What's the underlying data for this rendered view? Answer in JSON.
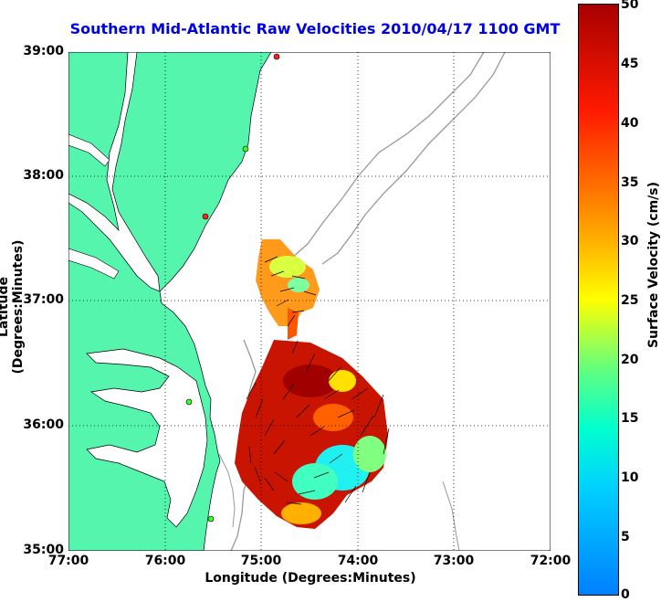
{
  "title": "Southern Mid-Atlantic Raw Velocities 2010/04/17 1100 GMT",
  "xlabel": "Longitude (Degrees:Minutes)",
  "ylabel": "Latitude (Degrees:Minutes)",
  "x_ticks": [
    "77:00",
    "76:00",
    "75:00",
    "74:00",
    "73:00",
    "72:00"
  ],
  "y_ticks": [
    "39:00",
    "38:00",
    "37:00",
    "36:00",
    "35:00"
  ],
  "colorbar": {
    "label": "Surface Velocity (cm/s)",
    "ticks": [
      "50",
      "45",
      "40",
      "35",
      "30",
      "25",
      "20",
      "15",
      "10",
      "5",
      "0"
    ]
  },
  "colors": {
    "land": "#55f5ae",
    "title": "#0000e6",
    "bathymetry": "#999999"
  }
}
